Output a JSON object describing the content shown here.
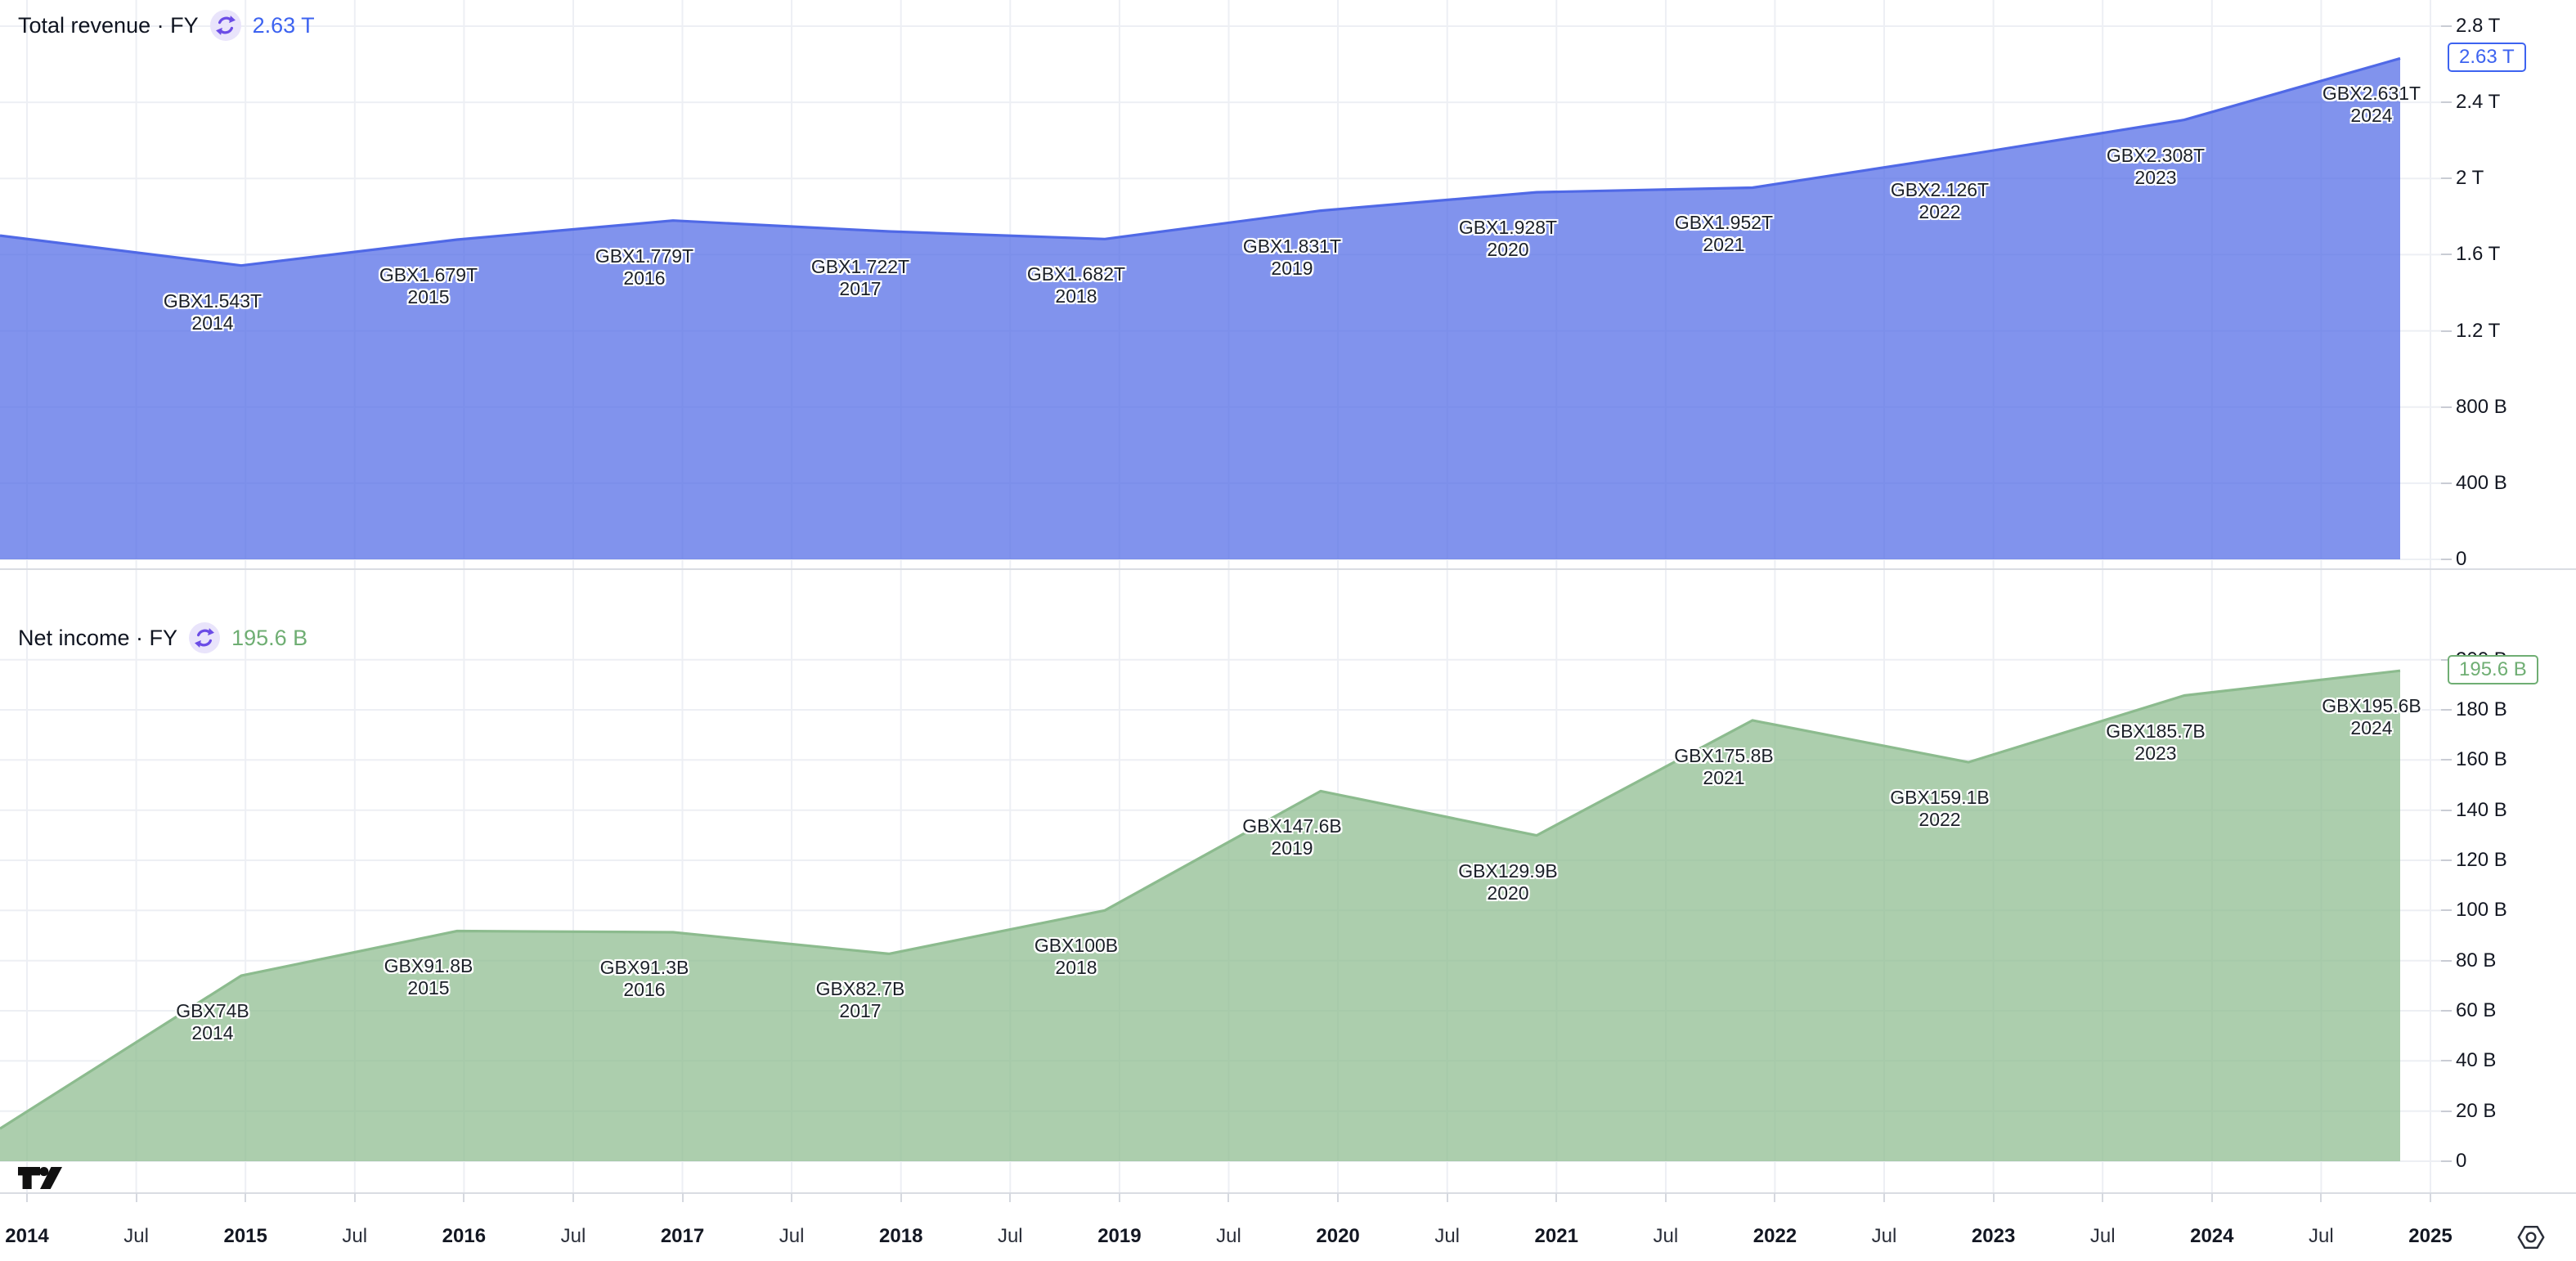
{
  "panes": {
    "revenue": {
      "title": "Total revenue · FY",
      "current_value": "2.63 T",
      "badge": "2.63 T",
      "accent": "#3d63f0",
      "axis_labels": [
        {
          "label": "2.8 T",
          "value": 2800
        },
        {
          "label": "2.4 T",
          "value": 2400
        },
        {
          "label": "2 T",
          "value": 2000
        },
        {
          "label": "1.6 T",
          "value": 1600
        },
        {
          "label": "1.2 T",
          "value": 1200
        },
        {
          "label": "800 B",
          "value": 800
        },
        {
          "label": "400 B",
          "value": 400
        },
        {
          "label": "0",
          "value": 0
        }
      ]
    },
    "net_income": {
      "title": "Net income · FY",
      "current_value": "195.6 B",
      "badge": "195.6 B",
      "accent": "#6fae73",
      "axis_labels": [
        {
          "label": "200 B",
          "value": 200
        },
        {
          "label": "180 B",
          "value": 180
        },
        {
          "label": "160 B",
          "value": 160
        },
        {
          "label": "140 B",
          "value": 140
        },
        {
          "label": "120 B",
          "value": 120
        },
        {
          "label": "100 B",
          "value": 100
        },
        {
          "label": "80 B",
          "value": 80
        },
        {
          "label": "60 B",
          "value": 60
        },
        {
          "label": "40 B",
          "value": 40
        },
        {
          "label": "20 B",
          "value": 20
        },
        {
          "label": "0",
          "value": 0
        }
      ]
    }
  },
  "chart_data": [
    {
      "type": "area",
      "name": "Total revenue (FY)",
      "unit": "GBX trillions",
      "categories": [
        "2014",
        "2015",
        "2016",
        "2017",
        "2018",
        "2019",
        "2020",
        "2021",
        "2022",
        "2023",
        "2024"
      ],
      "values": [
        1.543,
        1.679,
        1.779,
        1.722,
        1.682,
        1.831,
        1.928,
        1.952,
        2.126,
        2.308,
        2.631
      ],
      "point_labels": [
        "GBX1.543T",
        "GBX1.679T",
        "GBX1.779T",
        "GBX1.722T",
        "GBX1.682T",
        "GBX1.831T",
        "GBX1.928T",
        "GBX1.952T",
        "GBX2.126T",
        "GBX2.308T",
        "GBX2.631T"
      ],
      "ylim_billions": [
        0,
        2800
      ],
      "lead_in_billions": 1700,
      "line_color": "#5069e6",
      "fill_opacity": 0.72,
      "legend_position": "top-left",
      "grid": true
    },
    {
      "type": "area",
      "name": "Net income (FY)",
      "unit": "GBX billions",
      "categories": [
        "2014",
        "2015",
        "2016",
        "2017",
        "2018",
        "2019",
        "2020",
        "2021",
        "2022",
        "2023",
        "2024"
      ],
      "values": [
        74,
        91.8,
        91.3,
        82.7,
        100,
        147.6,
        129.9,
        175.8,
        159.1,
        185.7,
        195.6
      ],
      "point_labels": [
        "GBX74B",
        "GBX91.8B",
        "GBX91.3B",
        "GBX82.7B",
        "GBX100B",
        "GBX147.6B",
        "GBX129.9B",
        "GBX175.8B",
        "GBX159.1B",
        "GBX185.7B",
        "GBX195.6B"
      ],
      "ylim_billions": [
        0,
        200
      ],
      "lead_in_billions": 13,
      "line_color": "#8cbb8e",
      "fill_opacity": 0.72,
      "legend_position": "top-left",
      "grid": true
    }
  ],
  "x_axis": {
    "ticks": [
      "2014",
      "Jul",
      "2015",
      "Jul",
      "2016",
      "Jul",
      "2017",
      "Jul",
      "2018",
      "Jul",
      "2019",
      "Jul",
      "2020",
      "Jul",
      "2021",
      "Jul",
      "2022",
      "Jul",
      "2023",
      "Jul",
      "2024",
      "Jul",
      "2025"
    ]
  },
  "icons": {
    "refresh": "refresh-icon",
    "settings": "settings-gear-icon",
    "logo": "tradingview-logo"
  },
  "colors": {
    "background": "#ffffff",
    "grid": "#edeff4",
    "separator": "#d9dce2",
    "text": "#131722",
    "revenue_accent": "#3d63f0",
    "income_accent": "#6fae73"
  }
}
